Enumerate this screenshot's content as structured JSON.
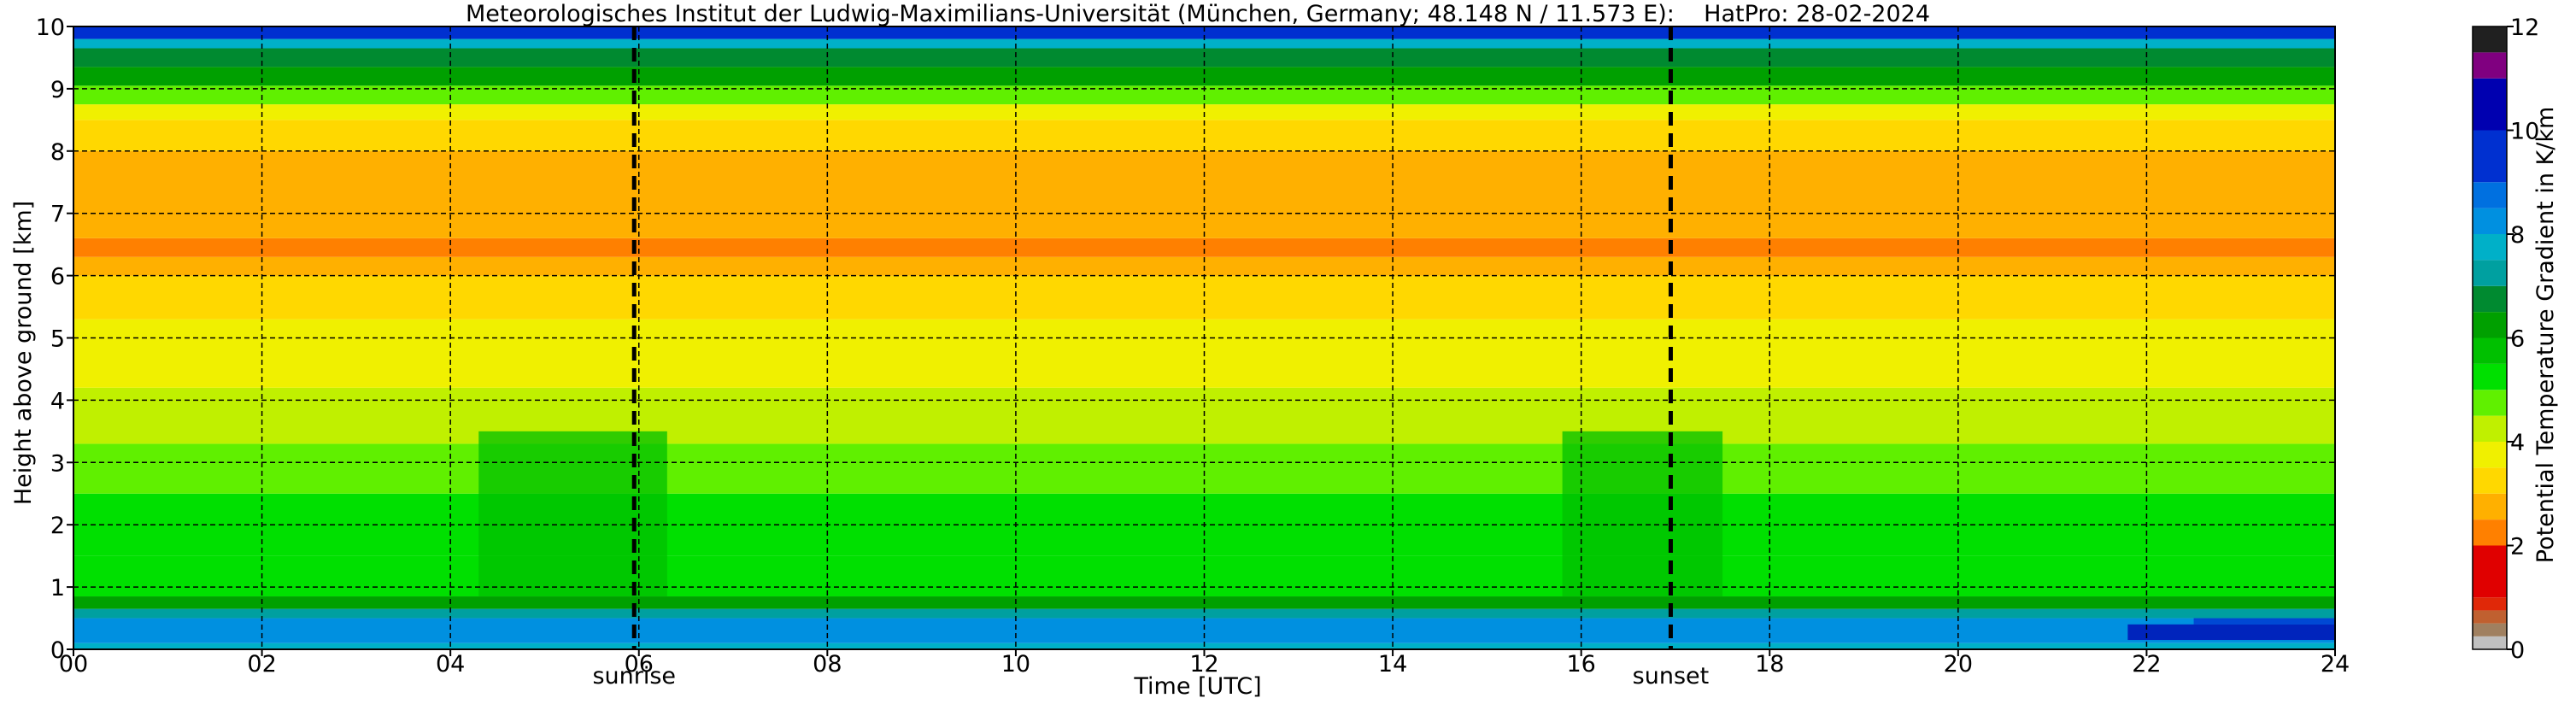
{
  "chart_data": {
    "type": "heatmap",
    "title": "Meteorologisches Institut der Ludwig-Maximilians-Universität (München, Germany; 48.148 N / 11.573 E):    HatPro: 28-02-2024",
    "xlabel": "Time [UTC]",
    "ylabel": "Height above ground [km]",
    "xlim": [
      0,
      24
    ],
    "ylim": [
      0,
      10
    ],
    "x_ticks": [
      0,
      2,
      4,
      6,
      8,
      10,
      12,
      14,
      16,
      18,
      20,
      22,
      24
    ],
    "x_tick_labels": [
      "00",
      "02",
      "04",
      "06",
      "08",
      "10",
      "12",
      "14",
      "16",
      "18",
      "20",
      "22",
      "24"
    ],
    "y_ticks": [
      0,
      1,
      2,
      3,
      4,
      5,
      6,
      7,
      8,
      9,
      10
    ],
    "y_tick_labels": [
      "0",
      "1",
      "2",
      "3",
      "4",
      "5",
      "6",
      "7",
      "8",
      "9",
      "10"
    ],
    "grid": true,
    "events": [
      {
        "label": "sunrise",
        "x": 5.95
      },
      {
        "label": "sunset",
        "x": 16.95
      }
    ],
    "colorbar": {
      "label": "Potential Temperature Gradient in K/km",
      "range": [
        0,
        12
      ],
      "ticks": [
        0,
        2,
        4,
        6,
        8,
        10,
        12
      ],
      "tick_labels": [
        "0",
        "2",
        "4",
        "6",
        "8",
        "10",
        "12"
      ],
      "bands": [
        {
          "from": 0.0,
          "to": 0.25,
          "color": "#c0c0c0"
        },
        {
          "from": 0.25,
          "to": 0.5,
          "color": "#a08060"
        },
        {
          "from": 0.5,
          "to": 0.75,
          "color": "#c06030"
        },
        {
          "from": 0.75,
          "to": 1.0,
          "color": "#e02808"
        },
        {
          "from": 1.0,
          "to": 2.0,
          "color": "#e00000"
        },
        {
          "from": 2.0,
          "to": 2.5,
          "color": "#ff8000"
        },
        {
          "from": 2.5,
          "to": 3.0,
          "color": "#ffb000"
        },
        {
          "from": 3.0,
          "to": 3.5,
          "color": "#ffd800"
        },
        {
          "from": 3.5,
          "to": 4.0,
          "color": "#f0f000"
        },
        {
          "from": 4.0,
          "to": 4.5,
          "color": "#c0f000"
        },
        {
          "from": 4.5,
          "to": 5.0,
          "color": "#60f000"
        },
        {
          "from": 5.0,
          "to": 5.5,
          "color": "#00e000"
        },
        {
          "from": 5.5,
          "to": 6.0,
          "color": "#00c000"
        },
        {
          "from": 6.0,
          "to": 6.5,
          "color": "#00a000"
        },
        {
          "from": 6.5,
          "to": 7.0,
          "color": "#008a30"
        },
        {
          "from": 7.0,
          "to": 7.5,
          "color": "#00a0a0"
        },
        {
          "from": 7.5,
          "to": 8.0,
          "color": "#00b0c8"
        },
        {
          "from": 8.0,
          "to": 8.5,
          "color": "#0090e0"
        },
        {
          "from": 8.5,
          "to": 9.0,
          "color": "#0070e0"
        },
        {
          "from": 9.0,
          "to": 10.0,
          "color": "#0030d0"
        },
        {
          "from": 10.0,
          "to": 11.0,
          "color": "#0000b0"
        },
        {
          "from": 11.0,
          "to": 11.5,
          "color": "#800080"
        },
        {
          "from": 11.5,
          "to": 12.0,
          "color": "#202020"
        }
      ]
    },
    "layers": [
      {
        "from": 0.0,
        "to": 0.1,
        "value": 7.5
      },
      {
        "from": 0.1,
        "to": 0.5,
        "value": 8.2
      },
      {
        "from": 0.5,
        "to": 0.65,
        "value": 7.0
      },
      {
        "from": 0.65,
        "to": 0.85,
        "value": 6.2
      },
      {
        "from": 0.85,
        "to": 1.5,
        "value": 5.4
      },
      {
        "from": 1.5,
        "to": 2.5,
        "value": 5.1
      },
      {
        "from": 2.5,
        "to": 3.3,
        "value": 4.8
      },
      {
        "from": 3.3,
        "to": 4.2,
        "value": 4.3
      },
      {
        "from": 4.2,
        "to": 5.3,
        "value": 3.7
      },
      {
        "from": 5.3,
        "to": 6.0,
        "value": 3.1
      },
      {
        "from": 6.0,
        "to": 6.3,
        "value": 2.7
      },
      {
        "from": 6.3,
        "to": 6.6,
        "value": 2.2
      },
      {
        "from": 6.6,
        "to": 8.0,
        "value": 2.6
      },
      {
        "from": 8.0,
        "to": 8.5,
        "value": 3.2
      },
      {
        "from": 8.5,
        "to": 8.75,
        "value": 3.8
      },
      {
        "from": 8.75,
        "to": 9.05,
        "value": 4.8
      },
      {
        "from": 9.05,
        "to": 9.35,
        "value": 6.2
      },
      {
        "from": 9.35,
        "to": 9.65,
        "value": 6.7
      },
      {
        "from": 9.65,
        "to": 9.8,
        "value": 7.7
      },
      {
        "from": 9.8,
        "to": 10.0,
        "value": 9.6
      }
    ],
    "features": [
      {
        "x": [
          4.3,
          6.3
        ],
        "y": [
          0.85,
          3.5
        ],
        "value": 5.6
      },
      {
        "x": [
          15.8,
          17.5
        ],
        "y": [
          0.85,
          3.5
        ],
        "value": 5.6
      },
      {
        "x": [
          21.8,
          24.0
        ],
        "y": [
          0.15,
          0.4
        ],
        "value": 10.2
      },
      {
        "x": [
          22.5,
          24.0
        ],
        "y": [
          0.4,
          0.5
        ],
        "value": 9.2
      }
    ]
  }
}
